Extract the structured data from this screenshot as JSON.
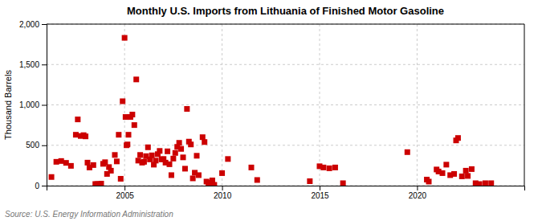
{
  "chart_data": {
    "type": "scatter",
    "title": "Monthly U.S. Imports from Lithuania of Finished Motor Gasoline",
    "ylabel": "Thousand Barrels",
    "source": "Source: U.S. Energy Information Administration",
    "color": "#cc0000",
    "marker": "square",
    "grid": true,
    "xlim": [
      2001.0,
      2025.5
    ],
    "xticks": [
      2005,
      2010,
      2015,
      2020
    ],
    "ylim": [
      0,
      2000
    ],
    "yticks": [
      0,
      500,
      {
        "value": 1000,
        "label": "1,000"
      },
      {
        "value": 1500,
        "label": "1,500"
      },
      {
        "value": 2000,
        "label": "2,000"
      }
    ],
    "x": [
      2001.25,
      2001.5,
      2001.75,
      2002.0,
      2002.25,
      2002.5,
      2002.6,
      2002.75,
      2002.9,
      2003.0,
      2003.1,
      2003.2,
      2003.4,
      2003.5,
      2003.6,
      2003.7,
      2003.8,
      2003.9,
      2004.0,
      2004.1,
      2004.2,
      2004.3,
      2004.5,
      2004.6,
      2004.7,
      2004.8,
      2004.9,
      2005.0,
      2005.05,
      2005.1,
      2005.15,
      2005.2,
      2005.3,
      2005.4,
      2005.5,
      2005.6,
      2005.7,
      2005.8,
      2005.9,
      2006.0,
      2006.1,
      2006.2,
      2006.3,
      2006.4,
      2006.5,
      2006.6,
      2006.7,
      2006.8,
      2006.9,
      2007.0,
      2007.1,
      2007.2,
      2007.3,
      2007.4,
      2007.5,
      2007.6,
      2007.7,
      2007.8,
      2007.9,
      2008.0,
      2008.1,
      2008.2,
      2008.3,
      2008.4,
      2008.5,
      2008.6,
      2008.7,
      2008.8,
      2009.0,
      2009.1,
      2009.2,
      2009.3,
      2009.4,
      2009.5,
      2009.6,
      2010.0,
      2010.3,
      2011.5,
      2011.8,
      2014.5,
      2015.0,
      2015.2,
      2015.5,
      2015.8,
      2016.2,
      2019.5,
      2020.5,
      2020.6,
      2021.0,
      2021.1,
      2021.3,
      2021.5,
      2021.7,
      2021.9,
      2022.0,
      2022.1,
      2022.3,
      2022.5,
      2022.6,
      2022.8,
      2023.0,
      2023.2,
      2023.5,
      2023.8
    ],
    "values": [
      107,
      295,
      305,
      282,
      245,
      630,
      820,
      615,
      625,
      610,
      285,
      225,
      255,
      20,
      20,
      18,
      25,
      270,
      290,
      145,
      230,
      185,
      380,
      300,
      630,
      85,
      1045,
      1830,
      850,
      500,
      510,
      630,
      850,
      880,
      750,
      1315,
      310,
      380,
      285,
      295,
      365,
      475,
      325,
      375,
      260,
      310,
      390,
      430,
      325,
      330,
      285,
      425,
      265,
      130,
      335,
      405,
      480,
      530,
      455,
      350,
      210,
      950,
      545,
      510,
      90,
      160,
      370,
      130,
      600,
      540,
      50,
      35,
      25,
      65,
      10,
      155,
      330,
      225,
      70,
      55,
      240,
      225,
      215,
      225,
      30,
      415,
      75,
      50,
      200,
      175,
      155,
      260,
      130,
      145,
      560,
      590,
      115,
      185,
      120,
      205,
      30,
      20,
      30,
      30
    ]
  }
}
